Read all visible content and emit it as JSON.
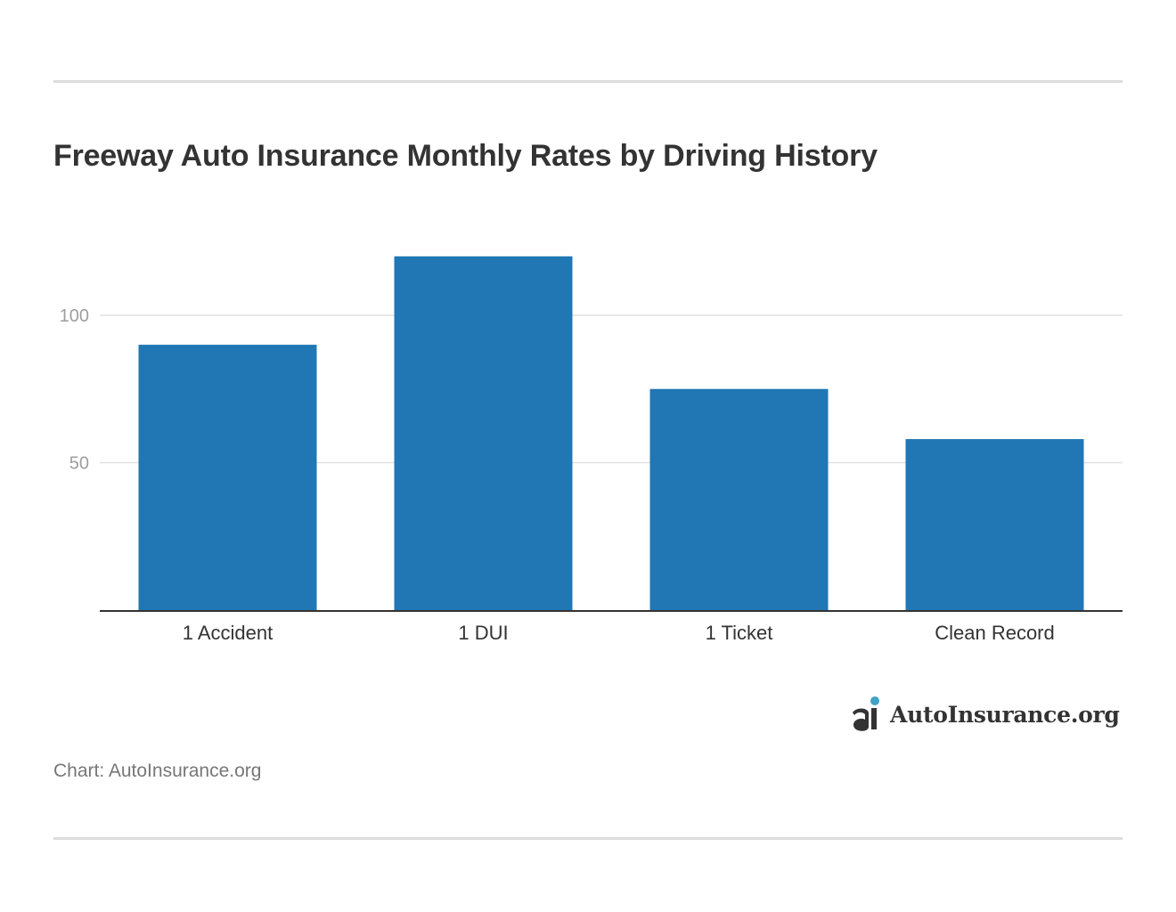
{
  "chart_data": {
    "type": "bar",
    "title": "Freeway Auto Insurance Monthly Rates by Driving History",
    "categories": [
      "1 Accident",
      "1 DUI",
      "1 Ticket",
      "Clean Record"
    ],
    "values": [
      90,
      120,
      75,
      58
    ],
    "xlabel": "",
    "ylabel": "",
    "ylim": [
      0,
      130
    ],
    "yticks": [
      50,
      100
    ],
    "grid": true,
    "bar_color": "#2077b4"
  },
  "logo": {
    "text": "AutoInsurance.org",
    "icon": "ai-logo-icon",
    "accent_color": "#3fa2c8"
  },
  "source": "Chart: AutoInsurance.org"
}
